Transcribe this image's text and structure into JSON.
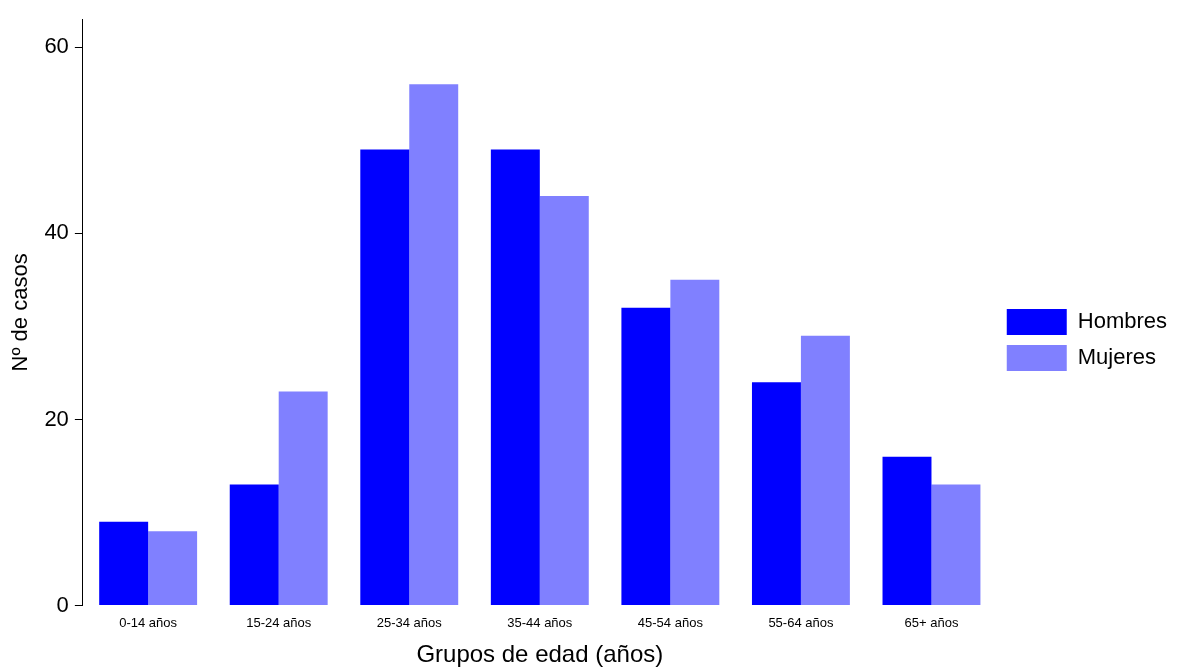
{
  "chart_data": {
    "type": "bar",
    "xlabel": "Grupos de edad (años)",
    "ylabel": "Nº de casos",
    "categories": [
      "0-14 años",
      "15-24 años",
      "25-34 años",
      "35-44 años",
      "45-54 años",
      "55-64 años",
      "65+ años"
    ],
    "series": [
      {
        "name": "Hombres",
        "color": "#0000ff",
        "values": [
          9,
          13,
          49,
          49,
          32,
          24,
          16
        ]
      },
      {
        "name": "Mujeres",
        "color": "#8080ff",
        "values": [
          8,
          23,
          56,
          44,
          35,
          29,
          13
        ]
      }
    ],
    "ylim": [
      0,
      63
    ],
    "yticks": [
      0,
      20,
      40,
      60
    ],
    "grid": false,
    "legend": "right"
  }
}
